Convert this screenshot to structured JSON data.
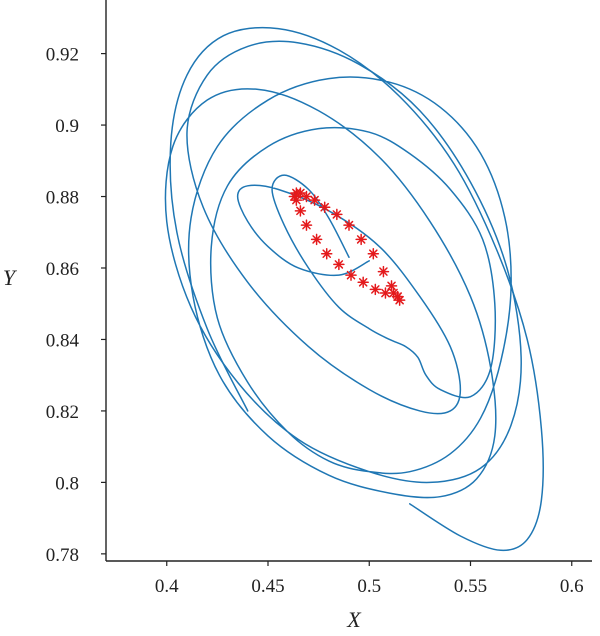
{
  "chart_data": {
    "type": "line",
    "xlabel": "X",
    "ylabel": "Y",
    "xlim": [
      0.37,
      0.61
    ],
    "ylim": [
      0.778,
      0.935
    ],
    "x_ticks": [
      "0.4",
      "0.45",
      "0.5",
      "0.55",
      "0.6"
    ],
    "x_tick_values": [
      0.4,
      0.45,
      0.5,
      0.55,
      0.6
    ],
    "y_ticks": [
      "0.78",
      "0.8",
      "0.82",
      "0.84",
      "0.86",
      "0.88",
      "0.9",
      "0.92"
    ],
    "y_tick_values": [
      0.78,
      0.8,
      0.82,
      0.84,
      0.86,
      0.88,
      0.9,
      0.92
    ],
    "grid": false,
    "series": [
      {
        "style": "line",
        "color": "#1f77b4",
        "x": [
          0.49,
          0.48,
          0.47,
          0.458,
          0.452,
          0.458,
          0.47,
          0.485,
          0.5,
          0.51,
          0.518,
          0.524,
          0.528,
          0.535,
          0.55,
          0.56,
          0.562,
          0.556,
          0.54,
          0.52,
          0.5,
          0.475,
          0.45,
          0.43,
          0.422,
          0.425,
          0.44,
          0.46,
          0.48,
          0.5,
          0.52,
          0.54,
          0.555,
          0.565,
          0.57,
          0.567,
          0.555,
          0.535,
          0.51,
          0.48,
          0.45,
          0.425,
          0.412,
          0.413,
          0.426,
          0.45,
          0.48,
          0.51,
          0.535,
          0.553,
          0.562,
          0.56,
          0.55,
          0.53,
          0.505,
          0.475,
          0.445,
          0.42,
          0.403,
          0.4,
          0.412,
          0.435,
          0.465,
          0.5,
          0.53,
          0.555,
          0.57,
          0.575,
          0.568,
          0.55,
          0.525,
          0.495,
          0.465,
          0.44,
          0.42,
          0.41,
          0.418,
          0.44,
          0.47,
          0.5,
          0.525,
          0.54,
          0.545,
          0.54,
          0.525,
          0.505,
          0.48,
          0.455,
          0.44,
          0.435,
          0.44,
          0.45,
          0.465,
          0.485,
          0.5
        ],
        "y": [
          0.863,
          0.874,
          0.882,
          0.886,
          0.882,
          0.872,
          0.86,
          0.849,
          0.843,
          0.84,
          0.838,
          0.835,
          0.83,
          0.826,
          0.824,
          0.832,
          0.85,
          0.868,
          0.882,
          0.892,
          0.898,
          0.899,
          0.894,
          0.883,
          0.866,
          0.846,
          0.828,
          0.814,
          0.806,
          0.803,
          0.803,
          0.808,
          0.818,
          0.834,
          0.854,
          0.874,
          0.892,
          0.905,
          0.912,
          0.913,
          0.907,
          0.894,
          0.874,
          0.852,
          0.83,
          0.813,
          0.802,
          0.797,
          0.796,
          0.801,
          0.813,
          0.832,
          0.852,
          0.873,
          0.891,
          0.904,
          0.91,
          0.907,
          0.894,
          0.873,
          0.849,
          0.828,
          0.812,
          0.803,
          0.8,
          0.804,
          0.816,
          0.835,
          0.86,
          0.884,
          0.904,
          0.917,
          0.923,
          0.922,
          0.914,
          0.898,
          0.877,
          0.856,
          0.838,
          0.826,
          0.82,
          0.82,
          0.826,
          0.838,
          0.852,
          0.866,
          0.876,
          0.882,
          0.883,
          0.88,
          0.873,
          0.866,
          0.86,
          0.858,
          0.862
        ]
      },
      {
        "style": "line",
        "color": "#1f77b4",
        "x": [
          0.52,
          0.545,
          0.565,
          0.578,
          0.585,
          0.585,
          0.578,
          0.563,
          0.542,
          0.515,
          0.485,
          0.455,
          0.428,
          0.41,
          0.402,
          0.405,
          0.42,
          0.44
        ],
        "y": [
          0.794,
          0.785,
          0.781,
          0.784,
          0.795,
          0.815,
          0.84,
          0.865,
          0.889,
          0.908,
          0.921,
          0.927,
          0.925,
          0.914,
          0.895,
          0.87,
          0.843,
          0.82
        ]
      },
      {
        "style": "markers",
        "color": "#e41a1c",
        "x": [
          0.463,
          0.464,
          0.466,
          0.469,
          0.473,
          0.478,
          0.484,
          0.49,
          0.496,
          0.502,
          0.507,
          0.511,
          0.514,
          0.515,
          0.514,
          0.512,
          0.508,
          0.503,
          0.497,
          0.491,
          0.485,
          0.479,
          0.474,
          0.469,
          0.466,
          0.464
        ],
        "y": [
          0.88,
          0.881,
          0.881,
          0.88,
          0.879,
          0.877,
          0.875,
          0.872,
          0.868,
          0.864,
          0.859,
          0.855,
          0.852,
          0.851,
          0.852,
          0.853,
          0.853,
          0.854,
          0.856,
          0.858,
          0.861,
          0.864,
          0.868,
          0.872,
          0.876,
          0.879
        ]
      }
    ]
  }
}
